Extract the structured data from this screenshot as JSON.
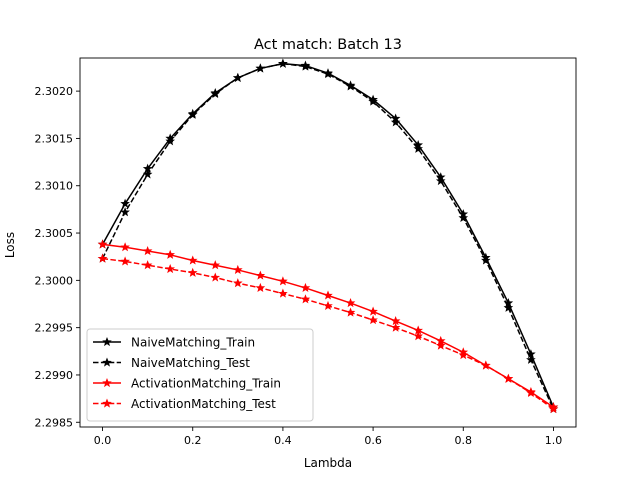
{
  "chart_data": {
    "type": "line",
    "title": "Act match: Batch 13",
    "xlabel": "Lambda",
    "ylabel": "Loss",
    "xlim": [
      -0.05,
      1.05
    ],
    "ylim": [
      2.29845,
      2.30235
    ],
    "x": [
      0.0,
      0.05,
      0.1,
      0.15,
      0.2,
      0.25,
      0.3,
      0.35,
      0.4,
      0.45,
      0.5,
      0.55,
      0.6,
      0.65,
      0.7,
      0.75,
      0.8,
      0.85,
      0.9,
      0.95,
      1.0
    ],
    "xticks": [
      0.0,
      0.2,
      0.4,
      0.6,
      0.8,
      1.0
    ],
    "xtick_labels": [
      "0.0",
      "0.2",
      "0.4",
      "0.6",
      "0.8",
      "1.0"
    ],
    "yticks": [
      2.2985,
      2.299,
      2.2995,
      2.3,
      2.3005,
      2.301,
      2.3015,
      2.302
    ],
    "ytick_labels": [
      "2.2985",
      "2.2990",
      "2.2995",
      "2.3000",
      "2.3005",
      "2.3010",
      "2.3015",
      "2.3020"
    ],
    "legend_position": "lower-left",
    "series": [
      {
        "name": "NaiveMatching_Train",
        "color": "#000000",
        "linestyle": "solid",
        "marker": "star",
        "values": [
          2.30038,
          2.30081,
          2.30118,
          2.3015,
          2.30176,
          2.30198,
          2.30214,
          2.30224,
          2.30229,
          2.30227,
          2.30219,
          2.30206,
          2.30191,
          2.30171,
          2.30143,
          2.30109,
          2.3007,
          2.30024,
          2.29976,
          2.29922,
          2.29866
        ]
      },
      {
        "name": "NaiveMatching_Test",
        "color": "#000000",
        "linestyle": "dashed",
        "marker": "star",
        "values": [
          2.30023,
          2.30072,
          2.30112,
          2.30147,
          2.30175,
          2.30197,
          2.30214,
          2.30224,
          2.30229,
          2.30226,
          2.30218,
          2.30205,
          2.30189,
          2.30167,
          2.30139,
          2.30105,
          2.30066,
          2.30021,
          2.29971,
          2.29916,
          2.29864
        ]
      },
      {
        "name": "ActivationMatching_Train",
        "color": "#ff0000",
        "linestyle": "solid",
        "marker": "star",
        "values": [
          2.30038,
          2.30035,
          2.30031,
          2.30027,
          2.30021,
          2.30016,
          2.30011,
          2.30005,
          2.29999,
          2.29992,
          2.29984,
          2.29976,
          2.29967,
          2.29957,
          2.29947,
          2.29936,
          2.29924,
          2.2991,
          2.29896,
          2.29882,
          2.29866
        ]
      },
      {
        "name": "ActivationMatching_Test",
        "color": "#ff0000",
        "linestyle": "dashed",
        "marker": "star",
        "values": [
          2.30023,
          2.3002,
          2.30016,
          2.30012,
          2.30008,
          2.30003,
          2.29997,
          2.29992,
          2.29986,
          2.2998,
          2.29973,
          2.29966,
          2.29958,
          2.2995,
          2.29941,
          2.29931,
          2.29921,
          2.2991,
          2.29896,
          2.29881,
          2.29864
        ]
      }
    ]
  }
}
